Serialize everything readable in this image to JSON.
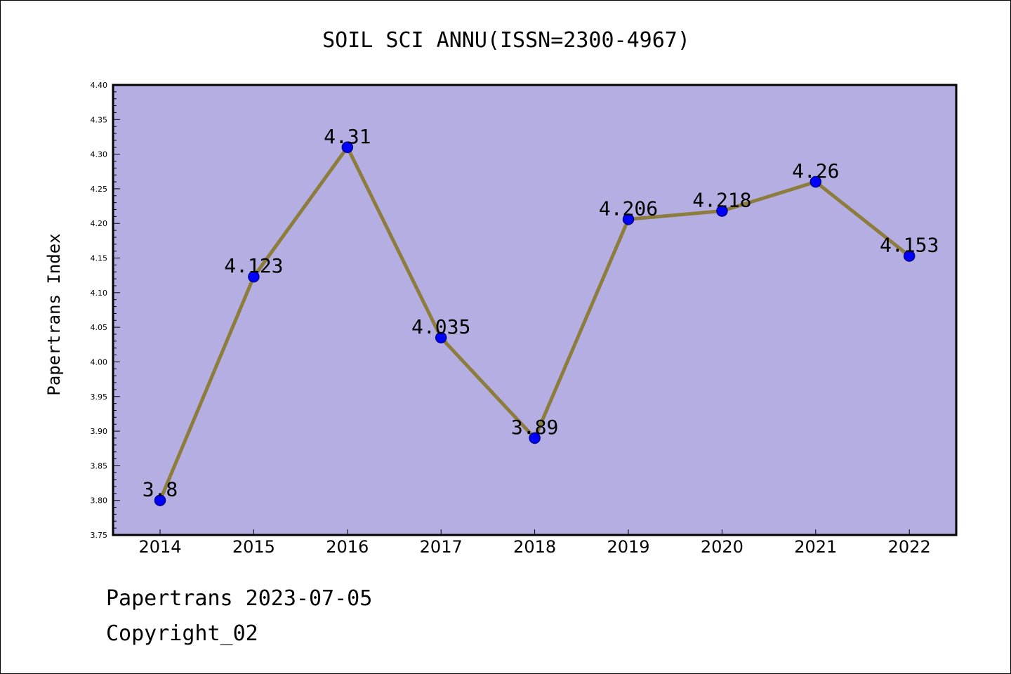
{
  "chart_data": {
    "type": "line",
    "title": "SOIL SCI ANNU(ISSN=2300-4967)",
    "xlabel": "",
    "ylabel": "Papertrans Index",
    "categories": [
      "2014",
      "2015",
      "2016",
      "2017",
      "2018",
      "2019",
      "2020",
      "2021",
      "2022"
    ],
    "series": [
      {
        "values": [
          3.8,
          4.123,
          4.31,
          4.035,
          3.89,
          4.206,
          4.218,
          4.26,
          4.153
        ],
        "labels": [
          "3.8",
          "4.123",
          "4.31",
          "4.035",
          "3.89",
          "4.206",
          "4.218",
          "4.26",
          "4.153"
        ]
      }
    ],
    "ylim": [
      3.75,
      4.4
    ],
    "yticks": [
      "3.75",
      "3.80",
      "3.85",
      "3.90",
      "3.95",
      "4.00",
      "4.05",
      "4.10",
      "4.15",
      "4.20",
      "4.25",
      "4.30",
      "4.35",
      "4.40"
    ],
    "grid": false,
    "legend": "none",
    "colors": {
      "plot_background": "#b5aee2",
      "line": "#8c7d3c",
      "marker": "#0000ff",
      "marker_edge": "#00008b",
      "frame": "#000000"
    }
  },
  "footer": {
    "date_line": "Papertrans 2023-07-05",
    "copyright_line": "Copyright_02"
  }
}
